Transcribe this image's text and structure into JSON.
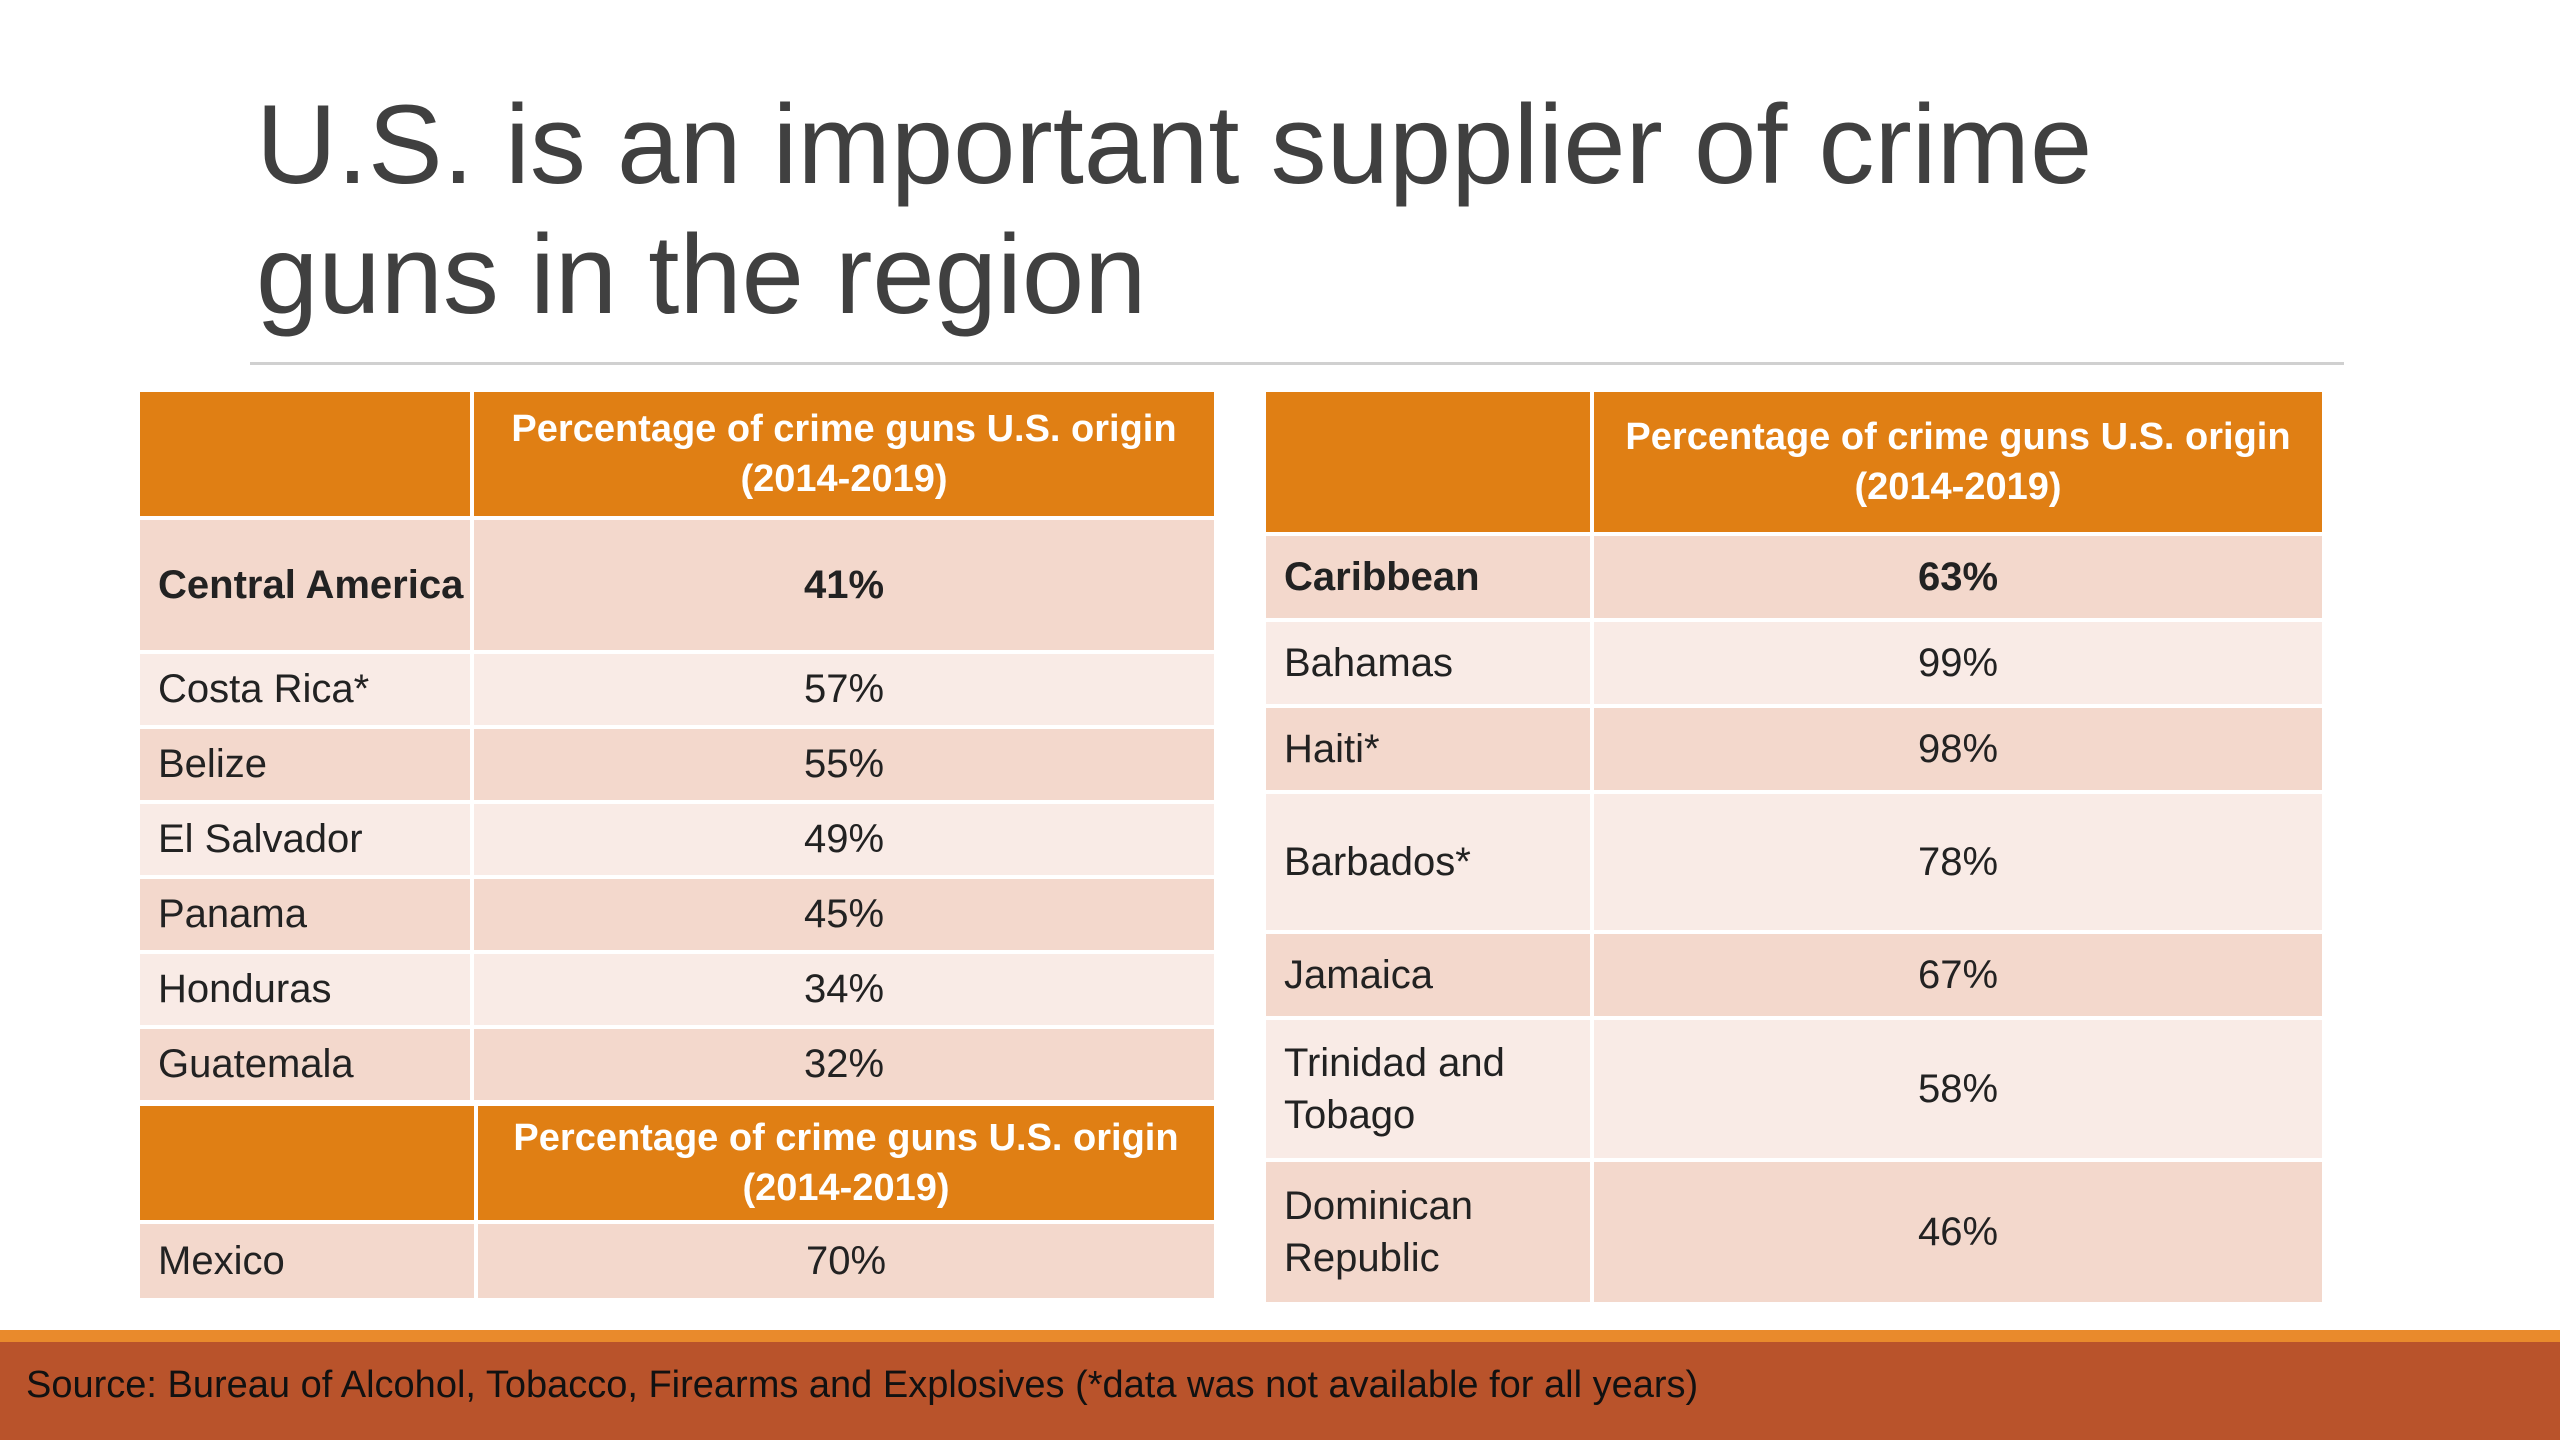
{
  "slide": {
    "title": "U.S. is an important supplier of crime guns in the region",
    "source": "Source: Bureau of Alcohol, Tobacco, Firearms and Explosives (*data was not available for all years)"
  },
  "tables": {
    "central_america": {
      "header_col1": "",
      "header_col2_line1": "Percentage of crime guns U.S. origin",
      "header_col2_line2": "(2014-2019)",
      "rows": [
        {
          "name": "Central America",
          "value": "41%"
        },
        {
          "name": "Costa Rica*",
          "value": "57%"
        },
        {
          "name": "Belize",
          "value": "55%"
        },
        {
          "name": "El Salvador",
          "value": "49%"
        },
        {
          "name": "Panama",
          "value": "45%"
        },
        {
          "name": "Honduras",
          "value": "34%"
        },
        {
          "name": "Guatemala",
          "value": "32%"
        }
      ]
    },
    "mexico": {
      "header_col1": "",
      "header_col2_line1": "Percentage of crime guns U.S. origin",
      "header_col2_line2": "(2014-2019)",
      "rows": [
        {
          "name": "Mexico",
          "value": "70%"
        }
      ]
    },
    "caribbean": {
      "header_col1": "",
      "header_col2_line1": "Percentage of crime guns U.S. origin",
      "header_col2_line2": "(2014-2019)",
      "rows": [
        {
          "name": "Caribbean",
          "value": "63%"
        },
        {
          "name": "Bahamas",
          "value": "99%"
        },
        {
          "name": "Haiti*",
          "value": "98%"
        },
        {
          "name": "Barbados*",
          "value": "78%"
        },
        {
          "name": "Jamaica",
          "value": "67%"
        },
        {
          "name": "Trinidad and Tobago",
          "value": "58%"
        },
        {
          "name": "Dominican Republic",
          "value": "46%"
        }
      ]
    }
  },
  "colors": {
    "header_orange": "#e07f14",
    "row_dark": "#f3d8cc",
    "row_light": "#f9ebe6",
    "footer_bar": "#b9532b",
    "footer_accent": "#e98a2c"
  }
}
